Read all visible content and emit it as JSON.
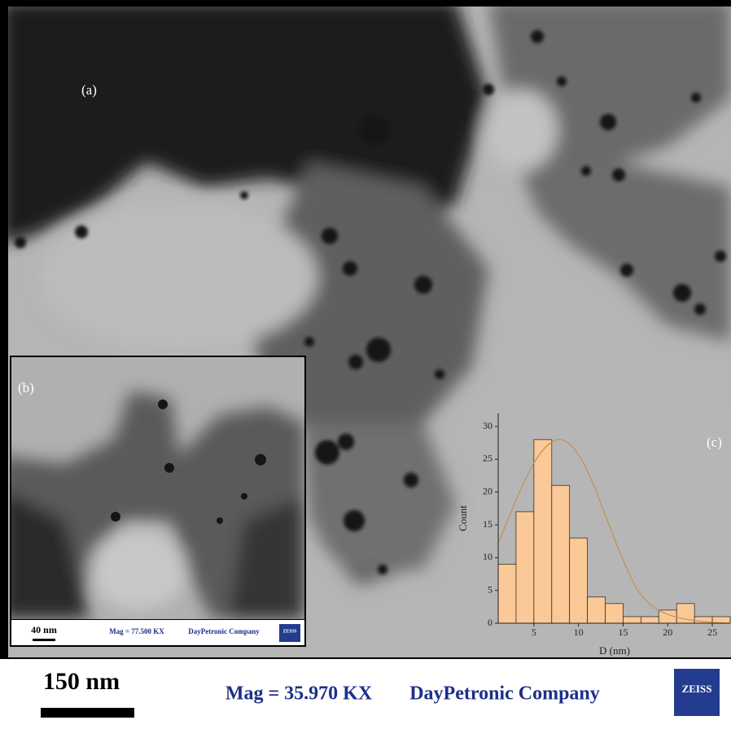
{
  "panels": {
    "a": "(a)",
    "b": "(b)",
    "c": "(c)"
  },
  "inset_b": {
    "scale": "40 nm",
    "mag": "Mag = 77.500 KX",
    "company": "DayPetronic Company",
    "logo": "ZEISS"
  },
  "footer": {
    "scale": "150 nm",
    "mag": "Mag = 35.970 KX",
    "company": "DayPetronic Company",
    "logo": "ZEISS"
  },
  "chart_data": {
    "type": "histogram",
    "x_label": "D (nm)",
    "y_label": "Count",
    "bins": [
      1,
      3,
      5,
      7,
      9,
      11,
      13,
      15,
      17,
      19,
      21,
      23,
      25,
      27
    ],
    "values": [
      9,
      17,
      28,
      21,
      13,
      4,
      3,
      1,
      1,
      2,
      3,
      1,
      1
    ],
    "color": "#fbc898",
    "xlim": [
      1,
      27
    ],
    "ylim": [
      0,
      32
    ],
    "xticks": [
      5,
      10,
      15,
      20,
      25
    ],
    "yticks": [
      0,
      5,
      10,
      15,
      20,
      25,
      30
    ]
  }
}
